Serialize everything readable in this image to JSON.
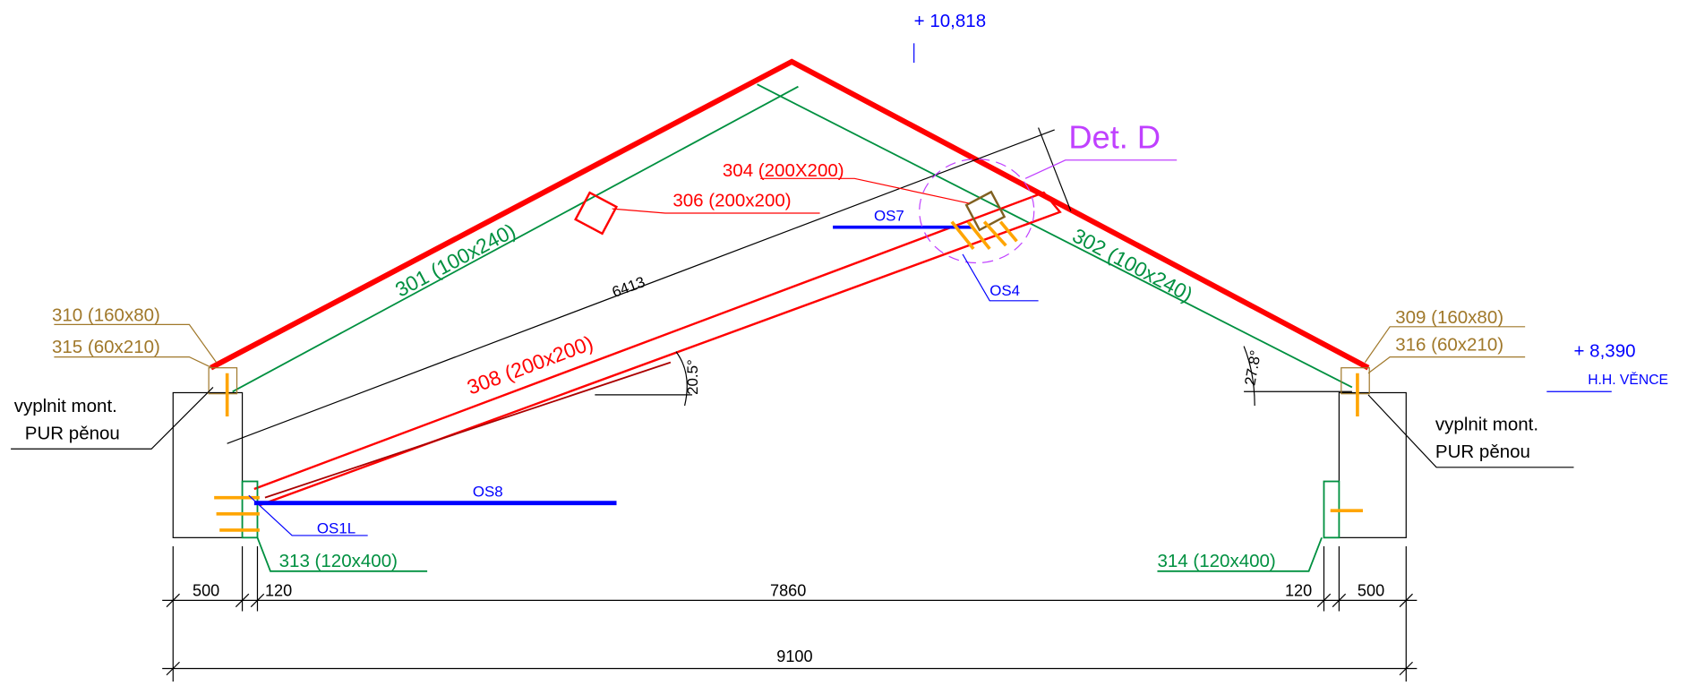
{
  "detail": "Det. D",
  "elevations": {
    "ridge": "+ 10,818",
    "wall": "+ 8,390",
    "wall_note": "H.H. VĚNCE"
  },
  "members": {
    "m304": "304 (200X200)",
    "m306": "306 (200x200)",
    "m301": "301 (100x240)",
    "m302": "302 (100x240)",
    "m308": "308 (200x200)",
    "m310": "310 (160x80)",
    "m315": "315 (60x210)",
    "m309": "309 (160x80)",
    "m316": "316 (60x210)",
    "m313": "313 (120x400)",
    "m314": "314 (120x400)"
  },
  "connectors": {
    "os7": "OS7",
    "os4": "OS4",
    "os8": "OS8",
    "os1l": "OS1L"
  },
  "angles": {
    "a1": "20.5°",
    "a2": "27.8°"
  },
  "notes": {
    "left": [
      "vyplnit mont.",
      "PUR pěnou"
    ],
    "right": [
      "vyplnit mont.",
      "PUR pěnou"
    ]
  },
  "dimensions": {
    "rafter": "6413",
    "row": [
      "500",
      "120",
      "7860",
      "120",
      "500"
    ],
    "total": "9100"
  }
}
